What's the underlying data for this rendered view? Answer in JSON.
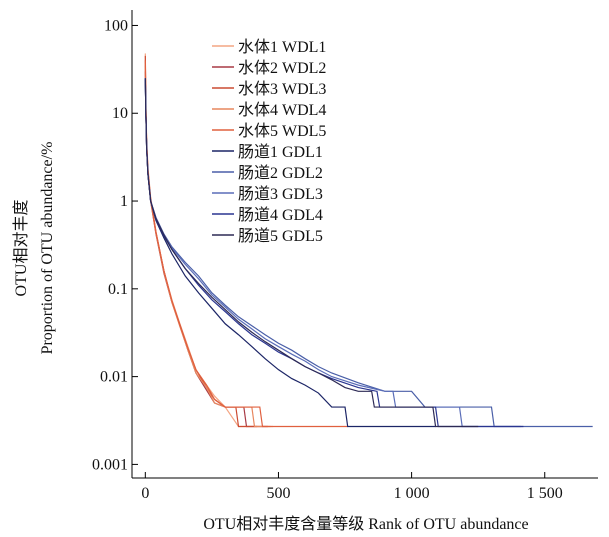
{
  "chart_data": {
    "type": "line",
    "xlabel": "OTU相对丰度含量等级 Rank of OTU abundance",
    "ylabel_lines": [
      "OTU相对丰度",
      "Proportion of  OTU abundance/%"
    ],
    "xlim": [
      -50,
      1700
    ],
    "ylim": [
      0.0007,
      150
    ],
    "yscale": "log",
    "xticks": [
      0,
      500,
      1000,
      1500
    ],
    "xtick_labels": [
      "0",
      "500",
      "1 000",
      "1 500"
    ],
    "yticks": [
      0.001,
      0.01,
      0.1,
      1,
      10,
      100
    ],
    "ytick_labels": [
      "0.001",
      "0.01",
      "0.1",
      "1",
      "10",
      "100"
    ],
    "grid": false,
    "legend_position": "top-right",
    "series": [
      {
        "name": "水体1 WDL1",
        "color": "#f4a583",
        "points": [
          [
            0,
            48
          ],
          [
            2,
            14
          ],
          [
            5,
            5
          ],
          [
            10,
            2.4
          ],
          [
            20,
            1.1
          ],
          [
            40,
            0.45
          ],
          [
            70,
            0.16
          ],
          [
            100,
            0.075
          ],
          [
            130,
            0.04
          ],
          [
            160,
            0.022
          ],
          [
            190,
            0.012
          ],
          [
            230,
            0.008
          ],
          [
            260,
            0.006
          ],
          [
            300,
            0.0045
          ],
          [
            350,
            0.0027
          ],
          [
            480,
            0.0027
          ]
        ]
      },
      {
        "name": "水体2 WDL2",
        "color": "#a83a45",
        "points": [
          [
            0,
            30
          ],
          [
            2,
            10
          ],
          [
            5,
            4
          ],
          [
            10,
            2
          ],
          [
            20,
            1
          ],
          [
            40,
            0.42
          ],
          [
            70,
            0.15
          ],
          [
            100,
            0.07
          ],
          [
            130,
            0.038
          ],
          [
            160,
            0.02
          ],
          [
            190,
            0.011
          ],
          [
            230,
            0.007
          ],
          [
            260,
            0.005
          ],
          [
            300,
            0.0045
          ],
          [
            370,
            0.0045
          ],
          [
            380,
            0.0027
          ],
          [
            460,
            0.0027
          ]
        ]
      },
      {
        "name": "水体3 WDL3",
        "color": "#cc4b32",
        "points": [
          [
            0,
            45
          ],
          [
            2,
            12
          ],
          [
            5,
            4.5
          ],
          [
            10,
            2.2
          ],
          [
            20,
            1.05
          ],
          [
            40,
            0.44
          ],
          [
            70,
            0.16
          ],
          [
            100,
            0.072
          ],
          [
            130,
            0.039
          ],
          [
            160,
            0.021
          ],
          [
            190,
            0.012
          ],
          [
            230,
            0.0075
          ],
          [
            260,
            0.0055
          ],
          [
            300,
            0.0045
          ],
          [
            340,
            0.0045
          ],
          [
            350,
            0.0027
          ],
          [
            420,
            0.0027
          ]
        ]
      },
      {
        "name": "水体4 WDL4",
        "color": "#e7875f",
        "points": [
          [
            0,
            35
          ],
          [
            2,
            11
          ],
          [
            5,
            4.2
          ],
          [
            10,
            2.1
          ],
          [
            20,
            1
          ],
          [
            40,
            0.43
          ],
          [
            70,
            0.155
          ],
          [
            100,
            0.07
          ],
          [
            130,
            0.037
          ],
          [
            160,
            0.02
          ],
          [
            190,
            0.011
          ],
          [
            230,
            0.0075
          ],
          [
            260,
            0.005
          ],
          [
            300,
            0.0045
          ],
          [
            400,
            0.0045
          ],
          [
            410,
            0.0027
          ],
          [
            470,
            0.0027
          ]
        ]
      },
      {
        "name": "水体5 WDL5",
        "color": "#e0603f",
        "points": [
          [
            0,
            40
          ],
          [
            2,
            12
          ],
          [
            5,
            4.4
          ],
          [
            10,
            2.2
          ],
          [
            20,
            1.05
          ],
          [
            40,
            0.44
          ],
          [
            70,
            0.16
          ],
          [
            100,
            0.073
          ],
          [
            130,
            0.038
          ],
          [
            160,
            0.021
          ],
          [
            190,
            0.012
          ],
          [
            230,
            0.008
          ],
          [
            260,
            0.0055
          ],
          [
            300,
            0.0045
          ],
          [
            430,
            0.0045
          ],
          [
            440,
            0.0027
          ],
          [
            760,
            0.0027
          ]
        ]
      },
      {
        "name": "肠道1 GDL1",
        "color": "#1c2566",
        "points": [
          [
            0,
            25
          ],
          [
            2,
            10
          ],
          [
            5,
            4
          ],
          [
            10,
            2
          ],
          [
            20,
            1
          ],
          [
            40,
            0.6
          ],
          [
            70,
            0.38
          ],
          [
            100,
            0.25
          ],
          [
            150,
            0.14
          ],
          [
            200,
            0.09
          ],
          [
            250,
            0.06
          ],
          [
            300,
            0.04
          ],
          [
            350,
            0.03
          ],
          [
            400,
            0.022
          ],
          [
            450,
            0.016
          ],
          [
            500,
            0.012
          ],
          [
            550,
            0.0095
          ],
          [
            600,
            0.008
          ],
          [
            650,
            0.0065
          ],
          [
            700,
            0.0045
          ],
          [
            750,
            0.0045
          ],
          [
            760,
            0.0027
          ],
          [
            1090,
            0.0027
          ]
        ]
      },
      {
        "name": "肠道2 GDL2",
        "color": "#4a5fa8",
        "points": [
          [
            0,
            25
          ],
          [
            2,
            10
          ],
          [
            5,
            4
          ],
          [
            10,
            2
          ],
          [
            20,
            1
          ],
          [
            40,
            0.65
          ],
          [
            70,
            0.42
          ],
          [
            100,
            0.3
          ],
          [
            150,
            0.2
          ],
          [
            200,
            0.14
          ],
          [
            250,
            0.09
          ],
          [
            300,
            0.065
          ],
          [
            350,
            0.048
          ],
          [
            400,
            0.038
          ],
          [
            450,
            0.03
          ],
          [
            500,
            0.024
          ],
          [
            550,
            0.02
          ],
          [
            600,
            0.016
          ],
          [
            650,
            0.013
          ],
          [
            700,
            0.011
          ],
          [
            800,
            0.0085
          ],
          [
            900,
            0.0068
          ],
          [
            1000,
            0.0068
          ],
          [
            1050,
            0.0045
          ],
          [
            1200,
            0.0045
          ],
          [
            1300,
            0.0045
          ],
          [
            1310,
            0.0027
          ],
          [
            1680,
            0.0027
          ]
        ]
      },
      {
        "name": "肠道3 GDL3",
        "color": "#5a6db8",
        "points": [
          [
            0,
            25
          ],
          [
            2,
            10
          ],
          [
            5,
            4
          ],
          [
            10,
            2
          ],
          [
            20,
            1
          ],
          [
            40,
            0.64
          ],
          [
            70,
            0.41
          ],
          [
            100,
            0.29
          ],
          [
            150,
            0.19
          ],
          [
            200,
            0.13
          ],
          [
            250,
            0.085
          ],
          [
            300,
            0.062
          ],
          [
            350,
            0.045
          ],
          [
            400,
            0.035
          ],
          [
            450,
            0.027
          ],
          [
            500,
            0.022
          ],
          [
            550,
            0.018
          ],
          [
            600,
            0.015
          ],
          [
            650,
            0.012
          ],
          [
            700,
            0.01
          ],
          [
            800,
            0.008
          ],
          [
            900,
            0.0068
          ],
          [
            930,
            0.0068
          ],
          [
            940,
            0.0045
          ],
          [
            1180,
            0.0045
          ],
          [
            1190,
            0.0027
          ],
          [
            1410,
            0.0027
          ]
        ]
      },
      {
        "name": "肠道4 GDL4",
        "color": "#2a3590",
        "points": [
          [
            0,
            25
          ],
          [
            2,
            10
          ],
          [
            5,
            4
          ],
          [
            10,
            2
          ],
          [
            20,
            1
          ],
          [
            40,
            0.62
          ],
          [
            70,
            0.4
          ],
          [
            100,
            0.28
          ],
          [
            150,
            0.17
          ],
          [
            200,
            0.11
          ],
          [
            250,
            0.075
          ],
          [
            300,
            0.055
          ],
          [
            350,
            0.04
          ],
          [
            400,
            0.03
          ],
          [
            450,
            0.024
          ],
          [
            500,
            0.019
          ],
          [
            550,
            0.016
          ],
          [
            600,
            0.013
          ],
          [
            650,
            0.011
          ],
          [
            700,
            0.0095
          ],
          [
            800,
            0.0075
          ],
          [
            870,
            0.0068
          ],
          [
            880,
            0.0045
          ],
          [
            1090,
            0.0045
          ],
          [
            1100,
            0.0027
          ],
          [
            1420,
            0.0027
          ]
        ]
      },
      {
        "name": "肠道5 GDL5",
        "color": "#2d2a55",
        "points": [
          [
            0,
            25
          ],
          [
            2,
            10
          ],
          [
            5,
            4
          ],
          [
            10,
            2
          ],
          [
            20,
            1
          ],
          [
            40,
            0.63
          ],
          [
            70,
            0.41
          ],
          [
            100,
            0.28
          ],
          [
            150,
            0.17
          ],
          [
            200,
            0.115
          ],
          [
            250,
            0.08
          ],
          [
            300,
            0.058
          ],
          [
            350,
            0.042
          ],
          [
            400,
            0.032
          ],
          [
            450,
            0.025
          ],
          [
            500,
            0.02
          ],
          [
            550,
            0.016
          ],
          [
            600,
            0.013
          ],
          [
            650,
            0.011
          ],
          [
            700,
            0.0092
          ],
          [
            750,
            0.0075
          ],
          [
            800,
            0.0068
          ],
          [
            850,
            0.0068
          ],
          [
            860,
            0.0045
          ],
          [
            1080,
            0.0045
          ],
          [
            1090,
            0.0027
          ],
          [
            1250,
            0.0027
          ]
        ]
      }
    ]
  }
}
